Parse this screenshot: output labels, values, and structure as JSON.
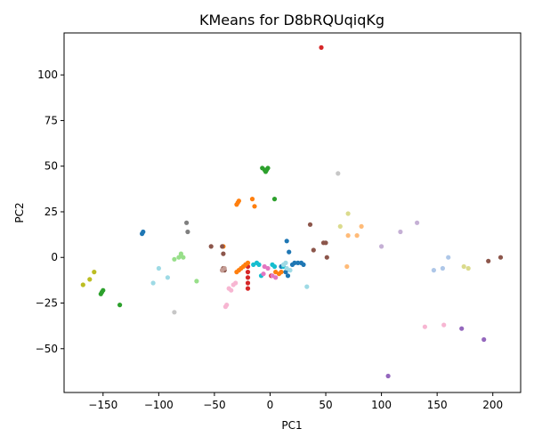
{
  "chart_data": {
    "type": "scatter",
    "title": "KMeans for D8bRQUqiqKg",
    "xlabel": "PC1",
    "ylabel": "PC2",
    "xlim": [
      -185,
      225
    ],
    "ylim": [
      -74,
      123
    ],
    "xticks": [
      -150,
      -100,
      -50,
      0,
      50,
      100,
      150,
      200
    ],
    "yticks": [
      -50,
      -25,
      0,
      25,
      50,
      75,
      100
    ],
    "xtick_labels": [
      "−150",
      "−100",
      "−50",
      "0",
      "50",
      "100",
      "150",
      "200"
    ],
    "ytick_labels": [
      "−50",
      "−25",
      "0",
      "25",
      "50",
      "75",
      "100"
    ],
    "grid": false,
    "legend": "none",
    "series": [
      {
        "color": "#d62728",
        "points": [
          [
            46,
            115
          ],
          [
            -20,
            -5
          ],
          [
            -20,
            -8
          ],
          [
            -20,
            -11
          ],
          [
            -20,
            -14
          ],
          [
            -20,
            -17
          ],
          [
            -22,
            -4
          ],
          [
            1,
            -10
          ]
        ]
      },
      {
        "color": "#2ca02c",
        "points": [
          [
            -7,
            49
          ],
          [
            -5,
            48
          ],
          [
            -4,
            47
          ],
          [
            -3,
            48
          ],
          [
            -2,
            49
          ],
          [
            4,
            32
          ],
          [
            -150,
            -18
          ],
          [
            -151,
            -19
          ],
          [
            -152,
            -20
          ],
          [
            -135,
            -26
          ]
        ]
      },
      {
        "color": "#ff7f0e",
        "points": [
          [
            -30,
            29
          ],
          [
            -29,
            30
          ],
          [
            -28,
            31
          ],
          [
            -16,
            32
          ],
          [
            -14,
            28
          ],
          [
            -42,
            6
          ],
          [
            -30,
            -8
          ],
          [
            -28,
            -7
          ],
          [
            -26,
            -6
          ],
          [
            -24,
            -5
          ],
          [
            -22,
            -4
          ],
          [
            -20,
            -3
          ],
          [
            5,
            -8
          ],
          [
            8,
            -9
          ],
          [
            10,
            -8
          ]
        ]
      },
      {
        "color": "#1f77b4",
        "points": [
          [
            -115,
            13
          ],
          [
            -114,
            14
          ],
          [
            15,
            9
          ],
          [
            17,
            3
          ],
          [
            20,
            -4
          ],
          [
            22,
            -3
          ],
          [
            25,
            -3
          ],
          [
            28,
            -3
          ],
          [
            30,
            -4
          ],
          [
            10,
            -5
          ],
          [
            14,
            -8
          ],
          [
            16,
            -10
          ]
        ]
      },
      {
        "color": "#17becf",
        "points": [
          [
            -15,
            -4
          ],
          [
            -12,
            -3
          ],
          [
            -10,
            -4
          ],
          [
            -8,
            -10
          ],
          [
            2,
            -4
          ],
          [
            4,
            -5
          ],
          [
            12,
            -5
          ]
        ]
      },
      {
        "color": "#9edae5",
        "points": [
          [
            -100,
            -6
          ],
          [
            -92,
            -11
          ],
          [
            -105,
            -14
          ],
          [
            33,
            -16
          ],
          [
            14,
            -3
          ],
          [
            15,
            -6
          ],
          [
            18,
            -7
          ],
          [
            12,
            -4
          ]
        ]
      },
      {
        "color": "#7f7f7f",
        "points": [
          [
            -75,
            19
          ],
          [
            -74,
            14
          ]
        ]
      },
      {
        "color": "#c7c7c7",
        "points": [
          [
            -86,
            -30
          ],
          [
            61,
            46
          ]
        ]
      },
      {
        "color": "#98df8a",
        "points": [
          [
            -86,
            -1
          ],
          [
            -82,
            0
          ],
          [
            -80,
            1
          ],
          [
            -78,
            0
          ],
          [
            -80,
            2
          ],
          [
            -66,
            -13
          ]
        ]
      },
      {
        "color": "#bcbd22",
        "points": [
          [
            -168,
            -15
          ],
          [
            -162,
            -12
          ],
          [
            -158,
            -8
          ]
        ]
      },
      {
        "color": "#8c564b",
        "points": [
          [
            -43,
            -7
          ],
          [
            -42,
            -6
          ],
          [
            -41,
            -7
          ],
          [
            -53,
            6
          ],
          [
            -43,
            6
          ],
          [
            -42,
            2
          ],
          [
            36,
            18
          ],
          [
            39,
            4
          ],
          [
            48,
            8
          ],
          [
            50,
            8
          ],
          [
            51,
            0
          ],
          [
            196,
            -2
          ],
          [
            207,
            0
          ]
        ]
      },
      {
        "color": "#c49c94",
        "points": [
          [
            -43,
            -7
          ],
          [
            -41,
            -6
          ]
        ]
      },
      {
        "color": "#f7b6d2",
        "points": [
          [
            -40,
            -27
          ],
          [
            -39,
            -26
          ],
          [
            -37,
            -17
          ],
          [
            -35,
            -18
          ],
          [
            -33,
            -15
          ],
          [
            -31,
            -14
          ],
          [
            139,
            -38
          ],
          [
            156,
            -37
          ]
        ]
      },
      {
        "color": "#e377c2",
        "points": [
          [
            -5,
            -5
          ],
          [
            -2,
            -6
          ],
          [
            2,
            -10
          ],
          [
            5,
            -11
          ],
          [
            -6,
            -9
          ]
        ]
      },
      {
        "color": "#dbdb8d",
        "points": [
          [
            63,
            17
          ],
          [
            70,
            24
          ],
          [
            174,
            -5
          ],
          [
            178,
            -6
          ]
        ]
      },
      {
        "color": "#ffbb78",
        "points": [
          [
            69,
            -5
          ],
          [
            70,
            12
          ],
          [
            78,
            12
          ],
          [
            82,
            17
          ]
        ]
      },
      {
        "color": "#c5b0d5",
        "points": [
          [
            100,
            6
          ],
          [
            117,
            14
          ],
          [
            132,
            19
          ]
        ]
      },
      {
        "color": "#aec7e8",
        "points": [
          [
            147,
            -7
          ],
          [
            155,
            -6
          ],
          [
            160,
            0
          ]
        ]
      },
      {
        "color": "#9467bd",
        "points": [
          [
            106,
            -65
          ],
          [
            172,
            -39
          ],
          [
            192,
            -45
          ]
        ]
      }
    ]
  }
}
